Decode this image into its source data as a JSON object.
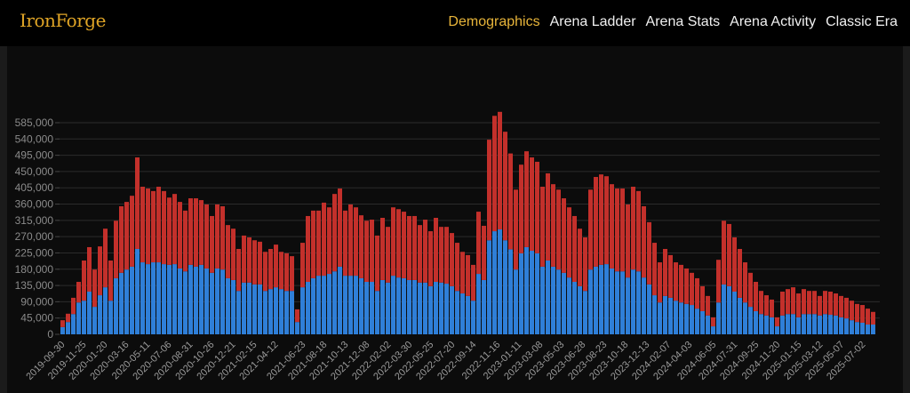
{
  "header": {
    "logo": "IronForge",
    "nav": [
      {
        "label": "Demographics",
        "active": true
      },
      {
        "label": "Arena Ladder",
        "active": false
      },
      {
        "label": "Arena Stats",
        "active": false
      },
      {
        "label": "Arena Activity",
        "active": false
      },
      {
        "label": "Classic Era",
        "active": false
      }
    ],
    "accent_color": "#e8b53a"
  },
  "chart_data": {
    "type": "bar",
    "stacked": true,
    "title": "",
    "xlabel": "",
    "ylabel": "",
    "ylim": [
      0,
      600000
    ],
    "value_unit_multiplier": 1000,
    "grid": true,
    "legend": "none",
    "bar_interval_days": 14,
    "start_date": "2019-09-30",
    "y_ticks": [
      "0",
      "45,000",
      "90,000",
      "135,000",
      "180,000",
      "225,000",
      "270,000",
      "315,000",
      "360,000",
      "405,000",
      "450,000",
      "495,000",
      "540,000",
      "585,000"
    ],
    "x_ticks": [
      "2019-09-30",
      "2019-11-25",
      "2020-01-20",
      "2020-03-16",
      "2020-05-11",
      "2020-07-06",
      "2020-08-31",
      "2020-10-26",
      "2020-12-21",
      "2021-02-15",
      "2021-04-12",
      "2021-06-23",
      "2021-08-18",
      "2021-10-13",
      "2021-12-08",
      "2022-02-02",
      "2022-03-30",
      "2022-05-25",
      "2022-07-20",
      "2022-09-14",
      "2022-11-16",
      "2023-01-11",
      "2023-03-08",
      "2023-05-03",
      "2023-06-28",
      "2023-08-23",
      "2023-10-18",
      "2023-12-13",
      "2024-02-07",
      "2024-04-03",
      "2024-06-05",
      "2024-07-31",
      "2024-09-25",
      "2024-11-20",
      "2025-01-15",
      "2025-03-12",
      "2025-05-07",
      "2025-07-02"
    ],
    "series": [
      {
        "id": "lower",
        "color": "#2f7fd8",
        "values": [
          20,
          34,
          56,
          88,
          93,
          118,
          76,
          108,
          130,
          93,
          155,
          170,
          179,
          187,
          236,
          199,
          194,
          199,
          199,
          194,
          192,
          194,
          182,
          174,
          192,
          187,
          192,
          182,
          170,
          182,
          179,
          155,
          150,
          120,
          143,
          143,
          138,
          138,
          120,
          125,
          130,
          125,
          120,
          120,
          34,
          130,
          145,
          155,
          162,
          162,
          167,
          174,
          187,
          162,
          162,
          162,
          155,
          145,
          145,
          120,
          150,
          143,
          162,
          157,
          155,
          150,
          150,
          143,
          143,
          133,
          145,
          143,
          140,
          133,
          120,
          113,
          106,
          93,
          167,
          150,
          260,
          285,
          290,
          260,
          235,
          179,
          224,
          241,
          231,
          224,
          187,
          204,
          187,
          179,
          170,
          157,
          145,
          133,
          120,
          179,
          187,
          192,
          194,
          182,
          174,
          174,
          157,
          179,
          174,
          157,
          138,
          108,
          88,
          106,
          101,
          93,
          88,
          84,
          81,
          71,
          64,
          52,
          22,
          88,
          138,
          133,
          118,
          101,
          88,
          76,
          64,
          56,
          52,
          47,
          22,
          52,
          56,
          56,
          47,
          56,
          56,
          56,
          52,
          56,
          54,
          52,
          47,
          44,
          39,
          34,
          32,
          27,
          27
        ]
      },
      {
        "id": "upper",
        "color": "#c3302b",
        "values": [
          19,
          23,
          45,
          57,
          111,
          123,
          103,
          135,
          162,
          111,
          159,
          184,
          187,
          196,
          253,
          209,
          209,
          197,
          209,
          202,
          186,
          194,
          184,
          168,
          184,
          189,
          179,
          177,
          157,
          177,
          175,
          147,
          142,
          116,
          130,
          125,
          122,
          118,
          108,
          111,
          118,
          103,
          104,
          96,
          35,
          123,
          182,
          187,
          180,
          202,
          184,
          214,
          216,
          180,
          197,
          189,
          174,
          169,
          172,
          153,
          172,
          154,
          189,
          189,
          184,
          177,
          177,
          159,
          174,
          152,
          177,
          154,
          157,
          147,
          133,
          115,
          113,
          99,
          172,
          150,
          278,
          319,
          325,
          300,
          265,
          221,
          245,
          265,
          258,
          253,
          221,
          241,
          228,
          221,
          206,
          194,
          182,
          159,
          148,
          221,
          248,
          250,
          243,
          233,
          229,
          229,
          202,
          229,
          222,
          197,
          172,
          145,
          111,
          130,
          118,
          106,
          104,
          98,
          89,
          84,
          69,
          54,
          25,
          118,
          176,
          172,
          150,
          135,
          111,
          94,
          81,
          64,
          56,
          49,
          25,
          66,
          69,
          74,
          66,
          69,
          64,
          64,
          54,
          64,
          64,
          61,
          59,
          57,
          54,
          50,
          49,
          44,
          35
        ]
      }
    ]
  }
}
